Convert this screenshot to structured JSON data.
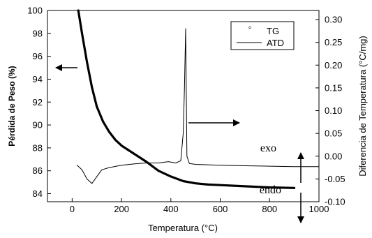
{
  "chart_data": {
    "type": "line",
    "xlabel": "Temperatura (°C)",
    "ylabel_left": "Pérdida de Peso (%)",
    "ylabel_right": "Diferencia de Temperatura (°C/mg)",
    "xlim": [
      -100,
      1000
    ],
    "ylim_left": [
      83.3,
      100
    ],
    "ylim_right": [
      -0.1,
      0.32
    ],
    "x_ticks": [
      0,
      200,
      400,
      600,
      800,
      1000
    ],
    "y_left_ticks": [
      84,
      86,
      88,
      90,
      92,
      94,
      96,
      98,
      100
    ],
    "y_right_ticks": [
      -0.1,
      -0.05,
      0.0,
      0.05,
      0.1,
      0.15,
      0.2,
      0.25,
      0.3
    ],
    "y_right_tick_labels": [
      "-0.10",
      "-0.05",
      "0.00",
      "0.05",
      "0.10",
      "0.15",
      "0.20",
      "0.25",
      "0.30"
    ],
    "legend": {
      "position": "top-right",
      "entries": [
        {
          "symbol": "°",
          "label": "TG"
        },
        {
          "symbol": "line",
          "label": "ATD"
        }
      ]
    },
    "annotations": {
      "exo": "exo",
      "endo": "endo"
    },
    "series": [
      {
        "name": "TG",
        "axis": "left",
        "x": [
          25,
          40,
          60,
          80,
          100,
          125,
          150,
          175,
          200,
          250,
          300,
          350,
          400,
          450,
          500,
          550,
          600,
          700,
          800,
          900
        ],
        "y": [
          100,
          98.0,
          95.5,
          93.3,
          91.6,
          90.3,
          89.4,
          88.7,
          88.2,
          87.5,
          86.8,
          86.0,
          85.5,
          85.1,
          84.9,
          84.8,
          84.75,
          84.65,
          84.55,
          84.5
        ]
      },
      {
        "name": "ATD",
        "axis": "right",
        "x": [
          20,
          40,
          60,
          80,
          100,
          120,
          150,
          200,
          250,
          300,
          350,
          390,
          420,
          440,
          450,
          455,
          460,
          465,
          475,
          500,
          600,
          700,
          800,
          900,
          1000
        ],
        "y": [
          -0.02,
          -0.03,
          -0.05,
          -0.06,
          -0.045,
          -0.03,
          -0.025,
          -0.02,
          -0.017,
          -0.015,
          -0.015,
          -0.012,
          -0.015,
          -0.01,
          0.05,
          0.15,
          0.28,
          0.0,
          -0.016,
          -0.018,
          -0.02,
          -0.021,
          -0.022,
          -0.023,
          -0.023
        ]
      }
    ]
  }
}
